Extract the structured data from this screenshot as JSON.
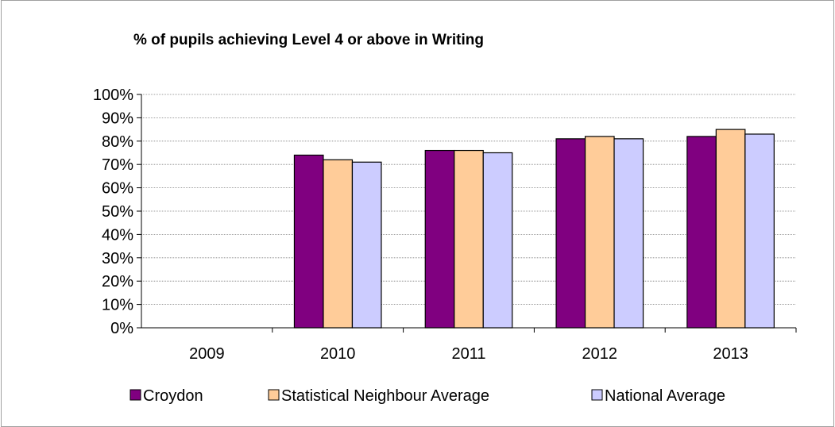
{
  "chart_data": {
    "type": "bar",
    "title": "% of pupils achieving Level 4 or above in Writing",
    "xlabel": "",
    "ylabel": "",
    "categories": [
      "2009",
      "2010",
      "2011",
      "2012",
      "2013"
    ],
    "series": [
      {
        "name": "Croydon",
        "color": "#800080",
        "values": [
          null,
          74,
          76,
          81,
          82
        ]
      },
      {
        "name": "Statistical Neighbour Average",
        "color": "#FFCC99",
        "values": [
          null,
          72,
          76,
          82,
          85
        ]
      },
      {
        "name": "National Average",
        "color": "#CCCCFF",
        "values": [
          null,
          71,
          75,
          81,
          83
        ]
      }
    ],
    "ylim": [
      0,
      100
    ],
    "yticks": [
      0,
      10,
      20,
      30,
      40,
      50,
      60,
      70,
      80,
      90,
      100
    ],
    "ytick_labels": [
      "0%",
      "10%",
      "20%",
      "30%",
      "40%",
      "50%",
      "60%",
      "70%",
      "80%",
      "90%",
      "100%"
    ],
    "grid": true,
    "legend_position": "bottom"
  }
}
